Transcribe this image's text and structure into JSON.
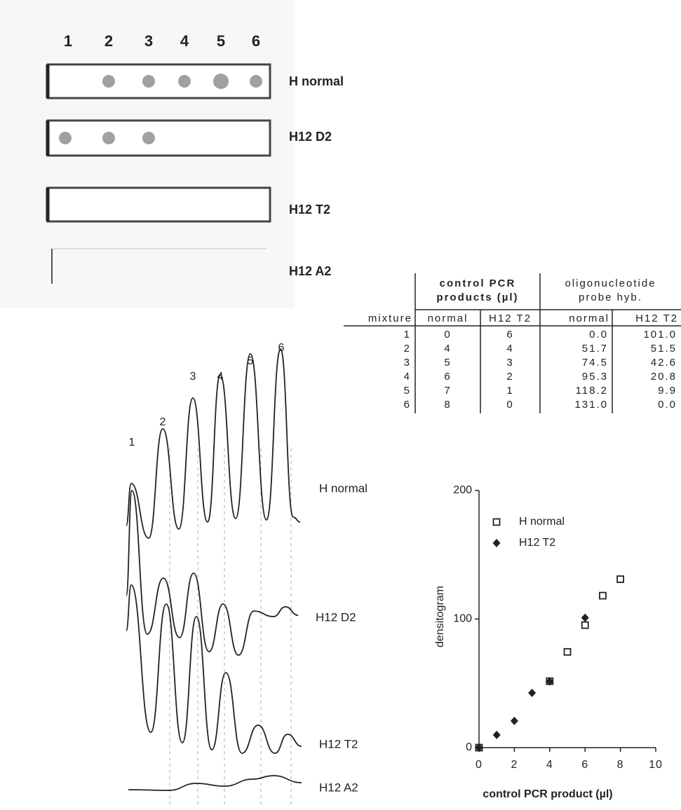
{
  "blot": {
    "lanes": [
      "1",
      "2",
      "3",
      "4",
      "5",
      "6"
    ],
    "rows": [
      "H normal",
      "H12 D2",
      "H12 T2",
      "H12 A2"
    ]
  },
  "table": {
    "groups": [
      "control PCR products (µl)",
      "oligonucleotide probe hyb."
    ],
    "columns": [
      "mixture",
      "normal",
      "H12 T2",
      "normal",
      "H12 T2"
    ],
    "rows": [
      [
        "1",
        "0",
        "6",
        "0.0",
        "101.0"
      ],
      [
        "2",
        "4",
        "4",
        "51.7",
        "51.5"
      ],
      [
        "3",
        "5",
        "3",
        "74.5",
        "42.6"
      ],
      [
        "4",
        "6",
        "2",
        "95.3",
        "20.8"
      ],
      [
        "5",
        "7",
        "1",
        "118.2",
        "9.9"
      ],
      [
        "6",
        "8",
        "0",
        "131.0",
        "0.0"
      ]
    ]
  },
  "densitogram": {
    "peaks": [
      "1",
      "2",
      "3",
      "4",
      "5",
      "6"
    ],
    "traces": [
      "H normal",
      "H12 D2",
      "H12 T2",
      "H12 A2"
    ]
  },
  "chart_data": {
    "type": "scatter",
    "xlabel": "control PCR product (µl)",
    "ylabel": "densitogram",
    "xlim": [
      0,
      10
    ],
    "xticks": [
      0,
      2,
      4,
      6,
      8,
      10
    ],
    "ylim": [
      0,
      200
    ],
    "yticks": [
      0,
      100,
      200
    ],
    "grid": false,
    "legend": "upper left",
    "series": [
      {
        "name": "H normal",
        "marker": "square",
        "color": "#222222",
        "x": [
          0,
          4,
          5,
          6,
          7,
          8
        ],
        "values": [
          0.0,
          51.7,
          74.5,
          95.3,
          118.2,
          131.0
        ]
      },
      {
        "name": "H12 T2",
        "marker": "diamond",
        "color": "#222222",
        "x": [
          6,
          4,
          3,
          2,
          1,
          0
        ],
        "values": [
          101.0,
          51.5,
          42.6,
          20.8,
          9.9,
          0.0
        ]
      }
    ]
  }
}
